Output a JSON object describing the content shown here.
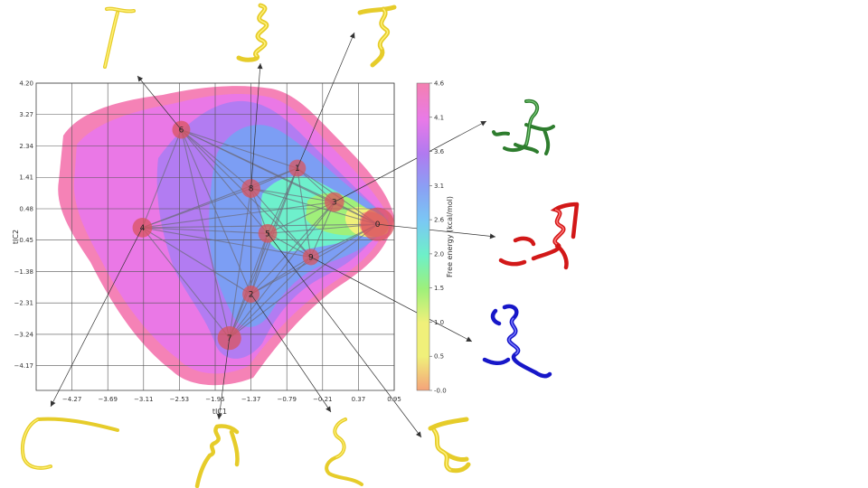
{
  "chart_data": {
    "type": "heatmap",
    "xlabel": "tIC1",
    "ylabel": "tIC2",
    "x_ticks": [
      "-4.27",
      "-3.69",
      "-3.11",
      "-2.53",
      "-1.95",
      "-1.37",
      "-0.79",
      "-0.21",
      "0.37",
      "0.95"
    ],
    "y_ticks": [
      "4.20",
      "3.27",
      "2.34",
      "1.41",
      "0.48",
      "-0.45",
      "-1.38",
      "-2.31",
      "-3.24",
      "-4.17"
    ],
    "xlim": [
      -4.85,
      0.95
    ],
    "ylim": [
      -4.9,
      4.2
    ],
    "grid": true,
    "colorbar": {
      "label": "Free energy (kcal/mol)",
      "ticks": [
        "4.6",
        "4.1",
        "3.6",
        "3.1",
        "2.6",
        "2.0",
        "1.5",
        "1.0",
        "0.5",
        "-0.0"
      ],
      "range": [
        0.0,
        4.6
      ],
      "colors": [
        "#f4a37a",
        "#f0f07a",
        "#9ef07a",
        "#6ef0c8",
        "#7ac8f4",
        "#8aa0f4",
        "#b07af0",
        "#e87ae8",
        "#f07ac0",
        "#f480b0"
      ]
    },
    "states": [
      {
        "label": "0",
        "x": 0.68,
        "y": 0.02,
        "size": 3.0
      },
      {
        "label": "1",
        "x": -0.62,
        "y": 1.68,
        "size": 1.0
      },
      {
        "label": "2",
        "x": -1.37,
        "y": -2.05,
        "size": 1.0
      },
      {
        "label": "3",
        "x": -0.02,
        "y": 0.68,
        "size": 1.3
      },
      {
        "label": "4",
        "x": -3.13,
        "y": -0.08,
        "size": 1.3
      },
      {
        "label": "5",
        "x": -1.1,
        "y": -0.25,
        "size": 1.2
      },
      {
        "label": "6",
        "x": -2.5,
        "y": 2.82,
        "size": 1.1
      },
      {
        "label": "7",
        "x": -1.72,
        "y": -3.35,
        "size": 1.8
      },
      {
        "label": "8",
        "x": -1.37,
        "y": 1.08,
        "size": 1.2
      },
      {
        "label": "9",
        "x": -0.4,
        "y": -0.95,
        "size": 0.9
      }
    ],
    "transitions": [
      [
        0,
        1
      ],
      [
        0,
        2
      ],
      [
        0,
        3
      ],
      [
        0,
        5
      ],
      [
        0,
        8
      ],
      [
        0,
        9
      ],
      [
        0,
        4
      ],
      [
        0,
        6
      ],
      [
        0,
        7
      ],
      [
        1,
        2
      ],
      [
        1,
        3
      ],
      [
        1,
        4
      ],
      [
        1,
        5
      ],
      [
        1,
        6
      ],
      [
        1,
        7
      ],
      [
        1,
        8
      ],
      [
        1,
        9
      ],
      [
        2,
        3
      ],
      [
        2,
        4
      ],
      [
        2,
        5
      ],
      [
        2,
        6
      ],
      [
        2,
        7
      ],
      [
        2,
        8
      ],
      [
        2,
        9
      ],
      [
        3,
        4
      ],
      [
        3,
        5
      ],
      [
        3,
        6
      ],
      [
        3,
        7
      ],
      [
        3,
        8
      ],
      [
        3,
        9
      ],
      [
        4,
        5
      ],
      [
        4,
        6
      ],
      [
        4,
        7
      ],
      [
        4,
        8
      ],
      [
        4,
        9
      ],
      [
        5,
        6
      ],
      [
        5,
        7
      ],
      [
        5,
        8
      ],
      [
        5,
        9
      ],
      [
        6,
        7
      ],
      [
        6,
        8
      ],
      [
        6,
        9
      ],
      [
        7,
        8
      ],
      [
        7,
        9
      ],
      [
        8,
        9
      ]
    ],
    "structures": [
      {
        "state": "6",
        "color": "#f0dc3c",
        "style": "coil-hook"
      },
      {
        "state": "8",
        "color": "#f0dc3c",
        "style": "helix"
      },
      {
        "state": "1",
        "color": "#f0dc3c",
        "style": "helix-coil"
      },
      {
        "state": "3",
        "color": "#3c8c3c",
        "style": "sidechain-loop"
      },
      {
        "state": "0",
        "color": "#dc2020",
        "style": "helix-sidechains"
      },
      {
        "state": "9",
        "color": "#1a1ad2",
        "style": "helix-sidechains"
      },
      {
        "state": "4",
        "color": "#f0dc3c",
        "style": "coil-c"
      },
      {
        "state": "7",
        "color": "#f0dc3c",
        "style": "coil-hook"
      },
      {
        "state": "2",
        "color": "#f0dc3c",
        "style": "coil-s"
      },
      {
        "state": "5",
        "color": "#f0dc3c",
        "style": "helix-coil"
      }
    ]
  }
}
